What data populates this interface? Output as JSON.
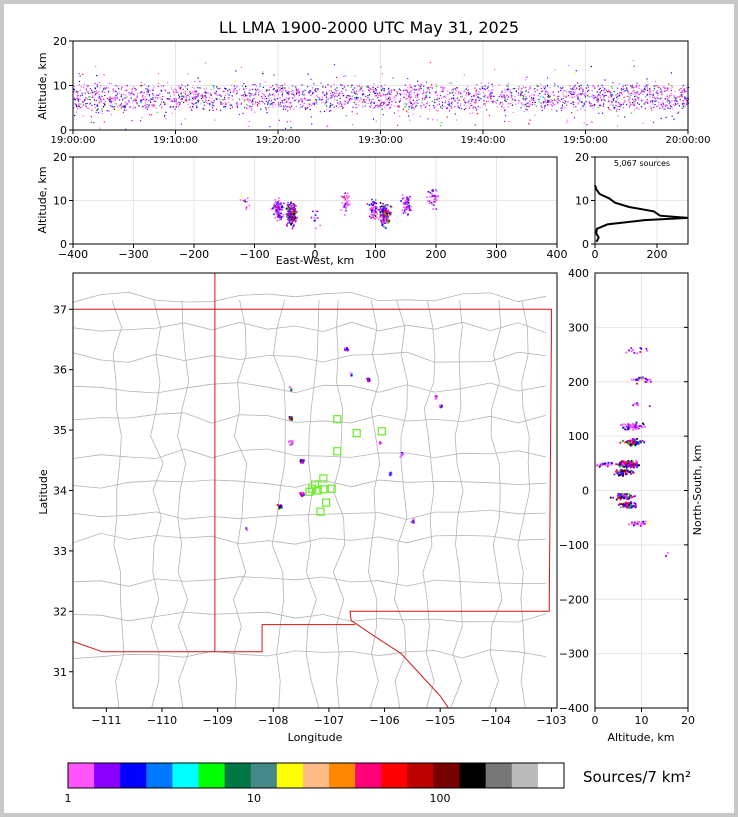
{
  "title": "LL LMA 1900-2000 UTC May 31, 2025",
  "colorbar_label": "Sources/7 km²",
  "sources_note": "5,067 sources",
  "chart_data": [
    {
      "id": "time-height",
      "type": "scatter",
      "ylabel": "Altitude, km",
      "xlabel": "",
      "ylim": [
        0,
        20
      ],
      "yticks": [
        "0",
        "10",
        "20"
      ],
      "xticks": [
        "19:00:00",
        "19:10:00",
        "19:20:00",
        "19:30:00",
        "19:40:00",
        "19:50:00",
        "20:00:00"
      ],
      "xlim": [
        "19:00:00",
        "20:00:00"
      ],
      "typical_altitude_km": [
        3,
        12
      ]
    },
    {
      "id": "ew-height",
      "type": "scatter",
      "xlabel": "East-West, km",
      "ylabel": "Altitude, km",
      "xlim": [
        -400,
        400
      ],
      "ylim": [
        0,
        20
      ],
      "xticks": [
        "−400",
        "−300",
        "−200",
        "−100",
        "0",
        "100",
        "200",
        "300",
        "400"
      ],
      "yticks": [
        "0",
        "10",
        "20"
      ],
      "clusters": [
        {
          "x": -115,
          "alt": 10,
          "n": 10
        },
        {
          "x": -62,
          "alt": 8,
          "n": 90
        },
        {
          "x": -40,
          "alt": 7,
          "n": 220
        },
        {
          "x": 0,
          "alt": 6,
          "n": 12
        },
        {
          "x": 50,
          "alt": 10,
          "n": 40
        },
        {
          "x": 95,
          "alt": 8,
          "n": 60
        },
        {
          "x": 115,
          "alt": 7,
          "n": 180
        },
        {
          "x": 150,
          "alt": 9,
          "n": 60
        },
        {
          "x": 195,
          "alt": 11,
          "n": 40
        }
      ]
    },
    {
      "id": "altitude-histogram",
      "type": "line",
      "xlim": [
        0,
        300
      ],
      "ylim": [
        0,
        20
      ],
      "xticks": [
        "0",
        "200"
      ],
      "yticks": [
        "0",
        "10",
        "20"
      ],
      "profile": [
        {
          "alt": 0.5,
          "count": 5
        },
        {
          "alt": 1.5,
          "count": 12
        },
        {
          "alt": 2.5,
          "count": 4
        },
        {
          "alt": 3.5,
          "count": 6
        },
        {
          "alt": 4.5,
          "count": 40
        },
        {
          "alt": 5.5,
          "count": 160
        },
        {
          "alt": 6.0,
          "count": 300
        },
        {
          "alt": 6.5,
          "count": 210
        },
        {
          "alt": 7.5,
          "count": 190
        },
        {
          "alt": 8.5,
          "count": 110
        },
        {
          "alt": 9.5,
          "count": 65
        },
        {
          "alt": 10.5,
          "count": 45
        },
        {
          "alt": 11.5,
          "count": 15
        },
        {
          "alt": 12.5,
          "count": 5
        },
        {
          "alt": 13.5,
          "count": 0
        }
      ]
    },
    {
      "id": "plan-view",
      "type": "scatter",
      "xlabel": "Longitude",
      "ylabel": "Latitude",
      "xlim": [
        -111.6,
        -102.9
      ],
      "ylim": [
        30.4,
        37.6
      ],
      "xticks": [
        "−111",
        "−110",
        "−109",
        "−108",
        "−107",
        "−106",
        "−105",
        "−104",
        "−103"
      ],
      "yticks": [
        "31",
        "32",
        "33",
        "34",
        "35",
        "36",
        "37"
      ],
      "clusters": [
        {
          "lon": -106.7,
          "lat": 36.35,
          "n": 10
        },
        {
          "lon": -106.3,
          "lat": 35.85,
          "n": 12
        },
        {
          "lon": -107.7,
          "lat": 35.7,
          "n": 4
        },
        {
          "lon": -107.7,
          "lat": 35.2,
          "n": 14
        },
        {
          "lon": -107.5,
          "lat": 34.5,
          "n": 16
        },
        {
          "lon": -107.7,
          "lat": 34.8,
          "n": 8
        },
        {
          "lon": -107.9,
          "lat": 33.75,
          "n": 14
        },
        {
          "lon": -107.5,
          "lat": 33.95,
          "n": 22
        },
        {
          "lon": -106.1,
          "lat": 34.8,
          "n": 8
        },
        {
          "lon": -105.9,
          "lat": 34.3,
          "n": 8
        },
        {
          "lon": -105.7,
          "lat": 34.6,
          "n": 6
        },
        {
          "lon": -105.5,
          "lat": 33.5,
          "n": 6
        },
        {
          "lon": -105.0,
          "lat": 35.4,
          "n": 8
        },
        {
          "lon": -105.1,
          "lat": 35.55,
          "n": 4
        },
        {
          "lon": -106.6,
          "lat": 35.95,
          "n": 3
        },
        {
          "lon": -108.5,
          "lat": 33.4,
          "n": 2
        }
      ],
      "stations": [
        {
          "lon": -106.85,
          "lat": 35.18
        },
        {
          "lon": -106.5,
          "lat": 34.95
        },
        {
          "lon": -106.05,
          "lat": 34.98
        },
        {
          "lon": -106.85,
          "lat": 34.65
        },
        {
          "lon": -107.1,
          "lat": 34.2
        },
        {
          "lon": -107.25,
          "lat": 34.1
        },
        {
          "lon": -107.1,
          "lat": 34.02
        },
        {
          "lon": -106.95,
          "lat": 34.03
        },
        {
          "lon": -107.2,
          "lat": 34.0
        },
        {
          "lon": -107.35,
          "lat": 33.98
        },
        {
          "lon": -107.05,
          "lat": 33.8
        },
        {
          "lon": -107.15,
          "lat": 33.65
        },
        {
          "lon": -107.3,
          "lat": 34.03
        }
      ]
    },
    {
      "id": "ns-height",
      "type": "scatter",
      "xlabel": "Altitude, km",
      "ylabel": "North-South, km",
      "xlim": [
        0,
        20
      ],
      "ylim": [
        -400,
        400
      ],
      "xticks": [
        "0",
        "10",
        "20"
      ],
      "yticks": [
        "−400",
        "−300",
        "−200",
        "−100",
        "0",
        "100",
        "200",
        "300",
        "400"
      ],
      "clusters": [
        {
          "alt": 9,
          "ns": 260,
          "n": 12
        },
        {
          "alt": 10,
          "ns": 205,
          "n": 25
        },
        {
          "alt": 9,
          "ns": 160,
          "n": 10
        },
        {
          "alt": 8,
          "ns": 120,
          "n": 60
        },
        {
          "alt": 8,
          "ns": 90,
          "n": 70
        },
        {
          "alt": 7,
          "ns": 50,
          "n": 200
        },
        {
          "alt": 6,
          "ns": 35,
          "n": 80
        },
        {
          "alt": 2,
          "ns": 50,
          "n": 20
        },
        {
          "alt": 6,
          "ns": -10,
          "n": 90
        },
        {
          "alt": 7,
          "ns": -25,
          "n": 70
        },
        {
          "alt": 9,
          "ns": -60,
          "n": 25
        },
        {
          "alt": 15,
          "ns": -115,
          "n": 2
        }
      ]
    },
    {
      "id": "colorbar",
      "type": "table",
      "scale": "log",
      "tick_labels": [
        "1",
        "10",
        "100"
      ],
      "colors": [
        "#ff55ff",
        "#8800ff",
        "#0000ff",
        "#0077ff",
        "#00ffff",
        "#00ff00",
        "#007744",
        "#448888",
        "#ffff00",
        "#ffbb88",
        "#ff8800",
        "#ff0077",
        "#ff0000",
        "#bb0000",
        "#770000",
        "#000000",
        "#777777",
        "#bbbbbb",
        "#ffffff"
      ]
    }
  ]
}
